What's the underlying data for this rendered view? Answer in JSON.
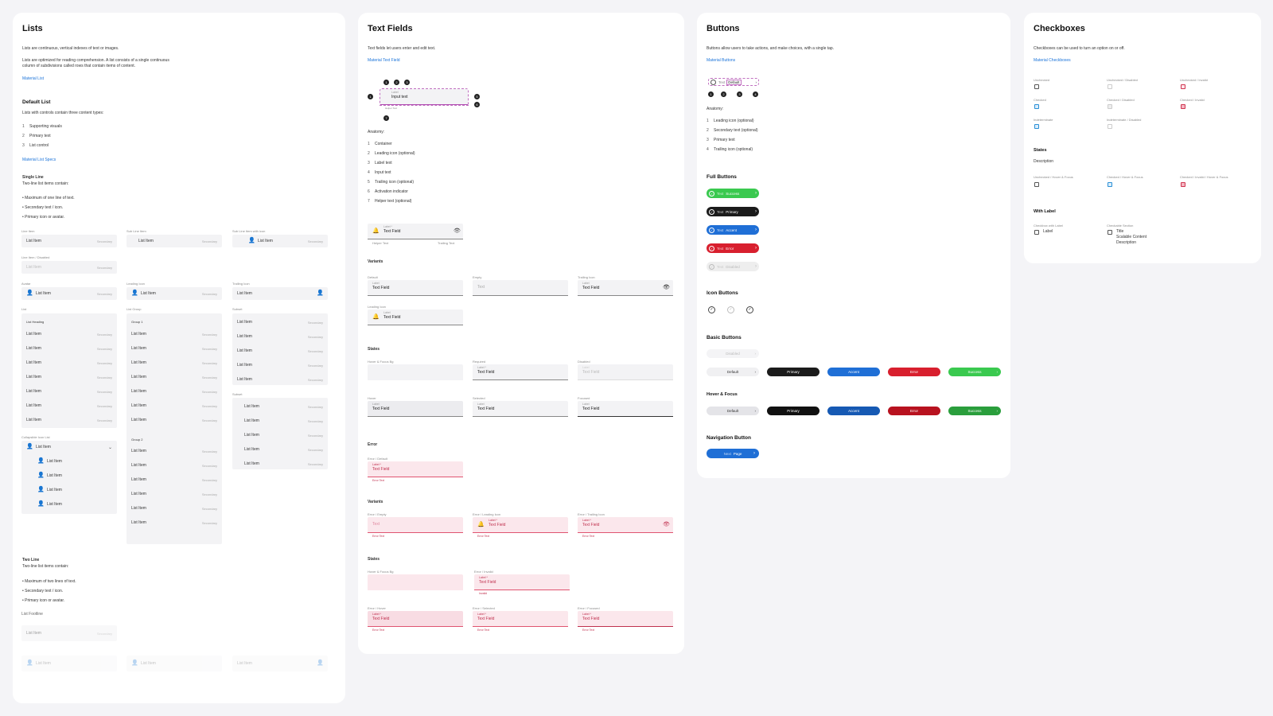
{
  "lists": {
    "title": "Lists",
    "intro1": "Lists are continuous, vertical indexes of text or images.",
    "intro2a": "Lists are optimized for reading comprehension. A list consists of a single continuous",
    "intro2b": "column of subdivisions called rows that contain items of content.",
    "link": "Material List",
    "default_title": "Default List",
    "default_desc": "Lists with controls contain three content types:",
    "content_types": [
      "Supporting visuals",
      "Primary text",
      "List control"
    ],
    "specs_link": "Material List Specs",
    "single_title": "Single Line",
    "single_desc": "Two-line list items contain:",
    "single_bullets": [
      "Maximum of one line of text.",
      "Secondary text / icon.",
      "Primary icon or avatar."
    ],
    "labels": {
      "list_item": "List Item",
      "line_item": "Line Item",
      "sub_line": "Sub Line Item",
      "sub_line_icon": "Sub Line Item with icon",
      "disabled": "Line Item / Disabled",
      "avatar": "Avatar",
      "leading": "Leading Icon",
      "trailing": "Trailing Icon",
      "list": "List",
      "list_group": "List Group",
      "subset": "Subset",
      "collapsible": "Collapsible Icon List",
      "subtitle": "Subset"
    },
    "item": "List Item",
    "secondary": "Secondary",
    "list_heading": "List Heading",
    "group1": "Group 1",
    "group2": "Group 2",
    "two_title": "Two Line",
    "two_desc": "Two-line list items contain:",
    "two_bullets": [
      "Maximum of two lines of text.",
      "Secondary text / icon.",
      "Primary icon or avatar."
    ],
    "footline": "List Footline"
  },
  "textfields": {
    "title": "Text Fields",
    "intro": "Text fields let users enter and edit text.",
    "link": "Material Text Field",
    "anatomy_label": "Anatomy:",
    "anatomy": [
      "Container",
      "Leading icon (optional)",
      "Label text",
      "Input text",
      "Trailing icon (optional)",
      "Activation indicator",
      "Helper text (optional)"
    ],
    "demo_label": "Label",
    "demo_input": "Input text",
    "helper": "Helper Text",
    "label_req": "Label *",
    "field": "Text Field",
    "helper_text": "Helper Text",
    "trailing_text": "Trailing Text",
    "variants": "Variants",
    "states": "States",
    "error": "Error",
    "error_states": "States",
    "error_variants": "Variants",
    "v_default": "Default",
    "v_empty": "Empty",
    "v_trailing": "Trailing Icon",
    "v_leading": "Leading Icon",
    "label": "Label",
    "text": "Text",
    "s_hover_focus": "Hover & Focus Bg",
    "s_required": "Required",
    "s_disabled": "Disabled",
    "s_hover": "Hover",
    "s_selected": "Selected",
    "s_focused": "Focused",
    "e_default": "Error / Default",
    "e_empty": "Error / Empty",
    "e_leading": "Error / Leading Icon",
    "e_trailing": "Error / Trailing Icon",
    "e_hover_focus": "Hover & Focus Bg",
    "e_invalid": "Error / Invalid",
    "e_hover": "Error / Hover",
    "e_selected": "Error / Selected",
    "e_focused": "Error / Focused",
    "error_text": "Error Text",
    "invalid": "Invalid"
  },
  "buttons": {
    "title": "Buttons",
    "intro": "Buttons allow users to take actions, and make choices, with a single tap.",
    "link": "Material Buttons",
    "demo_text": "Text",
    "demo_default": "Default",
    "anatomy_label": "Anatomy:",
    "anatomy": [
      "Leading icon (optional)",
      "Secondary text (optional)",
      "Primary text",
      "Trailing icon (optional)"
    ],
    "full_title": "Full Buttons",
    "full": [
      {
        "a": "Text",
        "b": "Success",
        "color": "#3ac94f"
      },
      {
        "a": "Text",
        "b": "Primary",
        "color": "#1b1b1b"
      },
      {
        "a": "Text",
        "b": "Accent",
        "color": "#1f6fd6"
      },
      {
        "a": "Text",
        "b": "Error",
        "color": "#d81f2e"
      },
      {
        "a": "Text",
        "b": "Disabled",
        "color": "#eeeeee"
      }
    ],
    "icon_title": "Icon Buttons",
    "basic_title": "Basic Buttons",
    "disabled": "Disabled",
    "basic": [
      {
        "label": "Default",
        "color": "#f0f0f2"
      },
      {
        "label": "Primary",
        "color": "#1b1b1b"
      },
      {
        "label": "Accent",
        "color": "#1f6fd6"
      },
      {
        "label": "Error",
        "color": "#d81f2e"
      },
      {
        "label": "Success",
        "color": "#3ac94f"
      }
    ],
    "hover_title": "Hover & Focus",
    "hover": [
      {
        "label": "Default",
        "color": "#e4e4e8"
      },
      {
        "label": "Primary",
        "color": "#111111"
      },
      {
        "label": "Accent",
        "color": "#1659b3"
      },
      {
        "label": "Error",
        "color": "#b8121f"
      },
      {
        "label": "Success",
        "color": "#2a9e3c"
      }
    ],
    "nav_title": "Navigation Button",
    "nav_a": "Next",
    "nav_b": "Page"
  },
  "checkboxes": {
    "title": "Checkboxes",
    "intro": "Checkboxes can be used to turn an option on or off.",
    "link": "Material Checkboxes",
    "grid": [
      "Unchecked",
      "Unchecked / Disabled",
      "Unchecked / Invalid",
      "Checked",
      "Checked / Disabled",
      "Checked / Invalid",
      "Indeterminate",
      "Indeterminate / Disabled"
    ],
    "states_title": "States",
    "states_desc": "Description",
    "states": [
      "Unchecked / Hover & Focus",
      "Checked / Hover & Focus",
      "Checked / Invalid / Hover & Focus"
    ],
    "label_title": "With Label",
    "with_label": "Checkbox with Label",
    "label": "Label",
    "section": "Checkable Section",
    "sec_title": "Title",
    "sec_content": "Scalable Content",
    "sec_desc": "Description"
  }
}
